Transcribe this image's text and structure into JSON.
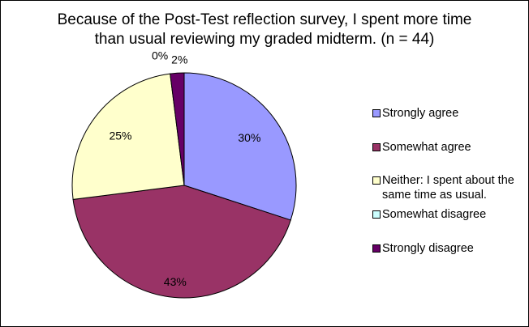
{
  "chart_data": {
    "type": "pie",
    "title": [
      "Because of the Post-Test reflection survey, I spent more time",
      "than usual reviewing my graded midterm. (n = 44)"
    ],
    "categories": [
      "Strongly agree",
      "Somewhat agree",
      "Neither: I spent about the same time as usual.",
      "Somewhat disagree",
      "Strongly disagree"
    ],
    "values": [
      30,
      43,
      25,
      0,
      2
    ],
    "value_labels": [
      "30%",
      "43%",
      "25%",
      "0%",
      "2%"
    ],
    "colors": [
      "#9999FF",
      "#993366",
      "#FFFFCC",
      "#CCFFFF",
      "#660066"
    ],
    "legend_position": "right"
  }
}
